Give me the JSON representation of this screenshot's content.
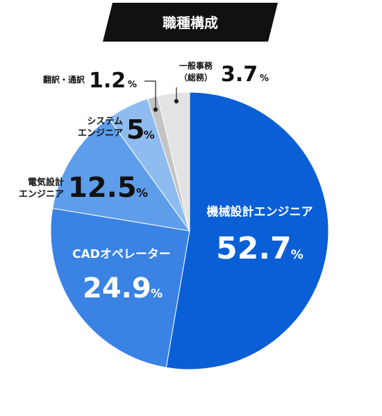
{
  "chart_data": {
    "type": "pie",
    "title": "職種構成",
    "unit": "%",
    "start_angle_deg": 0,
    "direction": "clockwise",
    "slices": [
      {
        "category": "機械設計エンジニア",
        "label_lines": [
          "機械設計エンジニア"
        ],
        "value": 52.7,
        "display": "52.7",
        "color": "#0a5fd6",
        "label_position": "inside"
      },
      {
        "category": "CADオペレーター",
        "label_lines": [
          "CADオペレーター"
        ],
        "value": 24.9,
        "display": "24.9",
        "color": "#3a82e4",
        "label_position": "inside"
      },
      {
        "category": "電気設計エンジニア",
        "label_lines": [
          "電気設計",
          "エンジニア"
        ],
        "value": 12.5,
        "display": "12.5",
        "color": "#5e9de9",
        "label_position": "outside"
      },
      {
        "category": "システムエンジニア",
        "label_lines": [
          "システム",
          "エンジニア"
        ],
        "value": 5,
        "display": "5",
        "color": "#8fbcf0",
        "label_position": "outside"
      },
      {
        "category": "翻訳・通訳",
        "label_lines": [
          "翻訳・通訳"
        ],
        "value": 1.2,
        "display": "1.2",
        "color": "#c4c4c4",
        "label_position": "leader"
      },
      {
        "category": "一般事務（総務）",
        "label_lines": [
          "一般事務",
          "（総務）"
        ],
        "value": 3.7,
        "display": "3.7",
        "color": "#e3e3e3",
        "label_position": "leader"
      }
    ]
  }
}
